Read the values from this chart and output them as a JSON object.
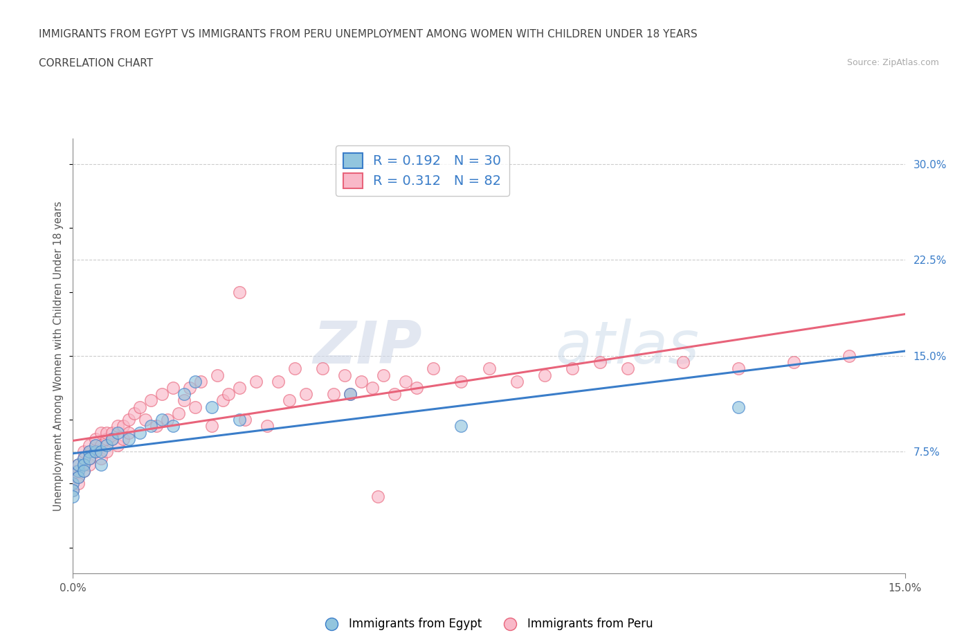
{
  "title_line1": "IMMIGRANTS FROM EGYPT VS IMMIGRANTS FROM PERU UNEMPLOYMENT AMONG WOMEN WITH CHILDREN UNDER 18 YEARS",
  "title_line2": "CORRELATION CHART",
  "source_text": "Source: ZipAtlas.com",
  "ylabel": "Unemployment Among Women with Children Under 18 years",
  "xlim": [
    0.0,
    0.15
  ],
  "ylim": [
    -0.02,
    0.32
  ],
  "xtick_positions": [
    0.0,
    0.15
  ],
  "xticklabels": [
    "0.0%",
    "15.0%"
  ],
  "yticks_right": [
    0.075,
    0.15,
    0.225,
    0.3
  ],
  "ytick_labels_right": [
    "7.5%",
    "15.0%",
    "22.5%",
    "30.0%"
  ],
  "egypt_R": 0.192,
  "egypt_N": 30,
  "peru_R": 0.312,
  "peru_N": 82,
  "egypt_color": "#92C5DE",
  "peru_color": "#F9B8C8",
  "egypt_line_color": "#3A7DC9",
  "peru_line_color": "#E8637A",
  "watermark_zip": "ZIP",
  "watermark_atlas": "atlas",
  "legend_label_egypt": "Immigrants from Egypt",
  "legend_label_peru": "Immigrants from Peru",
  "egypt_x": [
    0.0,
    0.0,
    0.0,
    0.001,
    0.001,
    0.001,
    0.002,
    0.002,
    0.002,
    0.003,
    0.003,
    0.004,
    0.004,
    0.005,
    0.005,
    0.006,
    0.007,
    0.008,
    0.01,
    0.012,
    0.014,
    0.016,
    0.018,
    0.02,
    0.022,
    0.025,
    0.03,
    0.05,
    0.07,
    0.12
  ],
  "egypt_y": [
    0.05,
    0.045,
    0.04,
    0.06,
    0.055,
    0.065,
    0.07,
    0.065,
    0.06,
    0.075,
    0.07,
    0.075,
    0.08,
    0.075,
    0.065,
    0.08,
    0.085,
    0.09,
    0.085,
    0.09,
    0.095,
    0.1,
    0.095,
    0.12,
    0.13,
    0.11,
    0.1,
    0.12,
    0.095,
    0.11
  ],
  "peru_x": [
    0.0,
    0.0,
    0.0,
    0.0,
    0.001,
    0.001,
    0.001,
    0.001,
    0.002,
    0.002,
    0.002,
    0.002,
    0.003,
    0.003,
    0.003,
    0.003,
    0.004,
    0.004,
    0.004,
    0.005,
    0.005,
    0.005,
    0.006,
    0.006,
    0.006,
    0.007,
    0.007,
    0.008,
    0.008,
    0.009,
    0.009,
    0.01,
    0.01,
    0.011,
    0.012,
    0.013,
    0.014,
    0.015,
    0.016,
    0.017,
    0.018,
    0.019,
    0.02,
    0.021,
    0.022,
    0.023,
    0.025,
    0.026,
    0.027,
    0.028,
    0.03,
    0.031,
    0.033,
    0.035,
    0.037,
    0.039,
    0.04,
    0.042,
    0.045,
    0.047,
    0.049,
    0.05,
    0.052,
    0.054,
    0.056,
    0.058,
    0.06,
    0.062,
    0.065,
    0.07,
    0.075,
    0.08,
    0.085,
    0.09,
    0.095,
    0.1,
    0.11,
    0.12,
    0.13,
    0.14,
    0.03,
    0.055
  ],
  "peru_y": [
    0.055,
    0.06,
    0.05,
    0.045,
    0.06,
    0.065,
    0.055,
    0.05,
    0.065,
    0.07,
    0.06,
    0.075,
    0.075,
    0.065,
    0.08,
    0.07,
    0.08,
    0.075,
    0.085,
    0.08,
    0.09,
    0.07,
    0.085,
    0.09,
    0.075,
    0.09,
    0.085,
    0.095,
    0.08,
    0.095,
    0.085,
    0.1,
    0.09,
    0.105,
    0.11,
    0.1,
    0.115,
    0.095,
    0.12,
    0.1,
    0.125,
    0.105,
    0.115,
    0.125,
    0.11,
    0.13,
    0.095,
    0.135,
    0.115,
    0.12,
    0.125,
    0.1,
    0.13,
    0.095,
    0.13,
    0.115,
    0.14,
    0.12,
    0.14,
    0.12,
    0.135,
    0.12,
    0.13,
    0.125,
    0.135,
    0.12,
    0.13,
    0.125,
    0.14,
    0.13,
    0.14,
    0.13,
    0.135,
    0.14,
    0.145,
    0.14,
    0.145,
    0.14,
    0.145,
    0.15,
    0.2,
    0.04
  ]
}
